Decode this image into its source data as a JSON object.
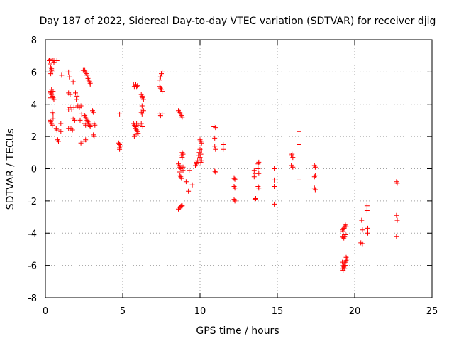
{
  "chart_data": {
    "type": "scatter",
    "title": "Day 187 of 2022, Sidereal Day-to-day VTEC variation (SDTVAR) for receiver djig",
    "xlabel": "GPS time / hours",
    "ylabel": "SDTVAR / TECUs",
    "xlim": [
      0,
      25
    ],
    "ylim": [
      -8,
      8
    ],
    "xticks": [
      0,
      5,
      10,
      15,
      20,
      25
    ],
    "yticks": [
      -8,
      -6,
      -4,
      -2,
      0,
      2,
      4,
      6,
      8
    ],
    "grid": true,
    "marker": "+",
    "color": "#ff0000",
    "series": [
      {
        "name": "SDTVAR",
        "points": [
          [
            0.25,
            6.7
          ],
          [
            0.3,
            6.5
          ],
          [
            0.35,
            6.3
          ],
          [
            0.4,
            6.1
          ],
          [
            0.45,
            6.0
          ],
          [
            0.3,
            6.8
          ],
          [
            0.5,
            6.7
          ],
          [
            0.55,
            6.6
          ],
          [
            0.6,
            6.7
          ],
          [
            0.75,
            6.7
          ],
          [
            0.4,
            6.2
          ],
          [
            0.35,
            5.9
          ],
          [
            0.3,
            4.8
          ],
          [
            0.35,
            4.7
          ],
          [
            0.4,
            4.6
          ],
          [
            0.45,
            4.5
          ],
          [
            0.5,
            4.4
          ],
          [
            0.55,
            4.3
          ],
          [
            0.3,
            4.4
          ],
          [
            0.4,
            4.9
          ],
          [
            0.5,
            4.8
          ],
          [
            0.45,
            3.5
          ],
          [
            0.5,
            3.4
          ],
          [
            0.3,
            3.0
          ],
          [
            0.35,
            2.9
          ],
          [
            0.4,
            2.8
          ],
          [
            0.45,
            2.7
          ],
          [
            0.5,
            3.1
          ],
          [
            0.7,
            2.5
          ],
          [
            0.75,
            2.4
          ],
          [
            0.8,
            1.8
          ],
          [
            0.85,
            1.7
          ],
          [
            1.0,
            2.8
          ],
          [
            1.0,
            2.3
          ],
          [
            1.05,
            5.8
          ],
          [
            1.5,
            6.0
          ],
          [
            1.55,
            5.7
          ],
          [
            1.5,
            4.7
          ],
          [
            1.6,
            4.6
          ],
          [
            1.8,
            5.4
          ],
          [
            1.5,
            3.7
          ],
          [
            1.6,
            3.8
          ],
          [
            1.7,
            3.7
          ],
          [
            1.85,
            3.8
          ],
          [
            1.5,
            2.5
          ],
          [
            1.65,
            2.5
          ],
          [
            1.75,
            2.4
          ],
          [
            1.8,
            3.1
          ],
          [
            1.9,
            3.0
          ],
          [
            1.95,
            4.7
          ],
          [
            2.05,
            4.5
          ],
          [
            2.0,
            4.3
          ],
          [
            2.1,
            3.9
          ],
          [
            2.2,
            3.8
          ],
          [
            2.3,
            3.9
          ],
          [
            2.35,
            3.4
          ],
          [
            2.25,
            3.0
          ],
          [
            2.3,
            1.6
          ],
          [
            2.45,
            6.1
          ],
          [
            2.55,
            6.1
          ],
          [
            2.6,
            6.0
          ],
          [
            2.65,
            5.9
          ],
          [
            2.7,
            5.8
          ],
          [
            2.75,
            5.6
          ],
          [
            2.8,
            5.5
          ],
          [
            2.85,
            5.4
          ],
          [
            2.9,
            5.3
          ],
          [
            2.9,
            5.2
          ],
          [
            2.55,
            3.3
          ],
          [
            2.6,
            3.2
          ],
          [
            2.65,
            3.1
          ],
          [
            2.7,
            3.0
          ],
          [
            2.75,
            2.9
          ],
          [
            2.8,
            2.8
          ],
          [
            2.85,
            2.7
          ],
          [
            2.9,
            2.6
          ],
          [
            2.5,
            2.8
          ],
          [
            2.6,
            2.7
          ],
          [
            2.5,
            1.7
          ],
          [
            2.6,
            1.8
          ],
          [
            3.05,
            3.6
          ],
          [
            3.1,
            3.5
          ],
          [
            3.15,
            2.8
          ],
          [
            3.2,
            2.7
          ],
          [
            3.1,
            2.1
          ],
          [
            3.15,
            2.0
          ],
          [
            4.8,
            3.4
          ],
          [
            4.75,
            1.6
          ],
          [
            4.8,
            1.5
          ],
          [
            4.85,
            1.4
          ],
          [
            4.8,
            1.3
          ],
          [
            4.8,
            1.2
          ],
          [
            5.7,
            5.2
          ],
          [
            5.75,
            5.1
          ],
          [
            5.85,
            5.2
          ],
          [
            5.9,
            5.1
          ],
          [
            5.95,
            5.15
          ],
          [
            5.7,
            2.8
          ],
          [
            5.75,
            2.7
          ],
          [
            5.8,
            2.6
          ],
          [
            5.85,
            2.5
          ],
          [
            5.9,
            2.4
          ],
          [
            5.95,
            2.3
          ],
          [
            6.0,
            2.2
          ],
          [
            5.75,
            2.0
          ],
          [
            5.8,
            2.1
          ],
          [
            5.9,
            2.8
          ],
          [
            6.0,
            2.7
          ],
          [
            6.2,
            4.6
          ],
          [
            6.25,
            4.5
          ],
          [
            6.3,
            4.4
          ],
          [
            6.35,
            4.3
          ],
          [
            6.25,
            3.9
          ],
          [
            6.3,
            3.7
          ],
          [
            6.35,
            3.6
          ],
          [
            6.2,
            3.5
          ],
          [
            6.25,
            3.4
          ],
          [
            6.2,
            2.8
          ],
          [
            6.3,
            2.6
          ],
          [
            7.4,
            5.5
          ],
          [
            7.45,
            5.7
          ],
          [
            7.5,
            5.9
          ],
          [
            7.55,
            6.0
          ],
          [
            7.4,
            5.1
          ],
          [
            7.45,
            5.0
          ],
          [
            7.5,
            4.9
          ],
          [
            7.55,
            4.8
          ],
          [
            7.4,
            3.4
          ],
          [
            7.45,
            3.3
          ],
          [
            7.55,
            3.4
          ],
          [
            8.6,
            3.6
          ],
          [
            8.7,
            3.5
          ],
          [
            8.75,
            3.4
          ],
          [
            8.8,
            3.3
          ],
          [
            8.85,
            3.2
          ],
          [
            8.6,
            0.3
          ],
          [
            8.65,
            0.2
          ],
          [
            8.7,
            0.1
          ],
          [
            8.75,
            0.0
          ],
          [
            8.65,
            -0.2
          ],
          [
            8.7,
            -0.4
          ],
          [
            8.75,
            -0.5
          ],
          [
            8.8,
            -0.6
          ],
          [
            8.8,
            0.8
          ],
          [
            8.85,
            1.0
          ],
          [
            8.9,
            0.9
          ],
          [
            8.85,
            0.7
          ],
          [
            8.9,
            0.1
          ],
          [
            8.9,
            -0.1
          ],
          [
            8.6,
            -2.5
          ],
          [
            8.7,
            -2.4
          ],
          [
            8.75,
            -2.35
          ],
          [
            8.8,
            -2.3
          ],
          [
            8.85,
            -2.3
          ],
          [
            9.1,
            -0.8
          ],
          [
            9.25,
            -1.4
          ],
          [
            9.3,
            -0.1
          ],
          [
            9.5,
            -1.0
          ],
          [
            9.7,
            0.2
          ],
          [
            9.75,
            0.4
          ],
          [
            9.8,
            0.3
          ],
          [
            9.85,
            0.5
          ],
          [
            9.9,
            0.8
          ],
          [
            9.95,
            1.0
          ],
          [
            10.0,
            1.2
          ],
          [
            10.05,
            0.9
          ],
          [
            10.1,
            1.1
          ],
          [
            10.0,
            1.8
          ],
          [
            10.05,
            1.7
          ],
          [
            10.1,
            1.6
          ],
          [
            10.0,
            0.7
          ],
          [
            10.1,
            0.5
          ],
          [
            10.05,
            0.4
          ],
          [
            10.9,
            2.6
          ],
          [
            11.0,
            2.55
          ],
          [
            10.95,
            1.9
          ],
          [
            10.95,
            1.4
          ],
          [
            11.0,
            1.2
          ],
          [
            10.95,
            -0.15
          ],
          [
            11.0,
            -0.2
          ],
          [
            11.5,
            1.5
          ],
          [
            11.5,
            1.2
          ],
          [
            12.2,
            -0.6
          ],
          [
            12.25,
            -0.65
          ],
          [
            12.2,
            -1.1
          ],
          [
            12.25,
            -1.2
          ],
          [
            12.2,
            -1.9
          ],
          [
            12.25,
            -2.0
          ],
          [
            13.5,
            -0.1
          ],
          [
            13.55,
            -0.3
          ],
          [
            13.5,
            -0.5
          ],
          [
            13.55,
            -1.9
          ],
          [
            13.6,
            -1.85
          ],
          [
            13.75,
            0.3
          ],
          [
            13.8,
            0.4
          ],
          [
            13.75,
            0.0
          ],
          [
            13.8,
            -0.3
          ],
          [
            13.75,
            -1.1
          ],
          [
            13.8,
            -1.2
          ],
          [
            14.8,
            0.0
          ],
          [
            14.8,
            -0.7
          ],
          [
            14.8,
            -1.1
          ],
          [
            14.8,
            -2.2
          ],
          [
            15.9,
            0.8
          ],
          [
            15.95,
            0.9
          ],
          [
            16.0,
            0.7
          ],
          [
            15.9,
            0.2
          ],
          [
            16.0,
            0.1
          ],
          [
            16.4,
            2.3
          ],
          [
            16.4,
            1.5
          ],
          [
            16.4,
            -0.7
          ],
          [
            17.4,
            0.2
          ],
          [
            17.45,
            0.1
          ],
          [
            17.4,
            -0.5
          ],
          [
            17.45,
            -0.4
          ],
          [
            17.4,
            -1.2
          ],
          [
            17.45,
            -1.3
          ],
          [
            19.2,
            -3.8
          ],
          [
            19.25,
            -3.9
          ],
          [
            19.3,
            -3.7
          ],
          [
            19.35,
            -3.6
          ],
          [
            19.4,
            -3.5
          ],
          [
            19.45,
            -3.6
          ],
          [
            19.2,
            -4.2
          ],
          [
            19.25,
            -4.25
          ],
          [
            19.3,
            -4.3
          ],
          [
            19.35,
            -4.2
          ],
          [
            19.4,
            -4.1
          ],
          [
            19.2,
            -5.8
          ],
          [
            19.25,
            -5.9
          ],
          [
            19.3,
            -6.0
          ],
          [
            19.35,
            -5.9
          ],
          [
            19.4,
            -5.8
          ],
          [
            19.45,
            -5.7
          ],
          [
            19.5,
            -5.6
          ],
          [
            19.2,
            -6.2
          ],
          [
            19.25,
            -6.3
          ],
          [
            19.3,
            -6.1
          ],
          [
            19.35,
            -6.2
          ],
          [
            19.4,
            -6.0
          ],
          [
            19.45,
            -5.5
          ],
          [
            20.4,
            -4.6
          ],
          [
            20.5,
            -4.65
          ],
          [
            20.45,
            -3.2
          ],
          [
            20.5,
            -3.8
          ],
          [
            20.8,
            -2.3
          ],
          [
            20.8,
            -2.6
          ],
          [
            20.85,
            -3.7
          ],
          [
            20.85,
            -4.0
          ],
          [
            22.7,
            -0.8
          ],
          [
            22.75,
            -0.9
          ],
          [
            22.7,
            -2.9
          ],
          [
            22.75,
            -3.2
          ],
          [
            22.7,
            -4.2
          ]
        ]
      }
    ]
  }
}
